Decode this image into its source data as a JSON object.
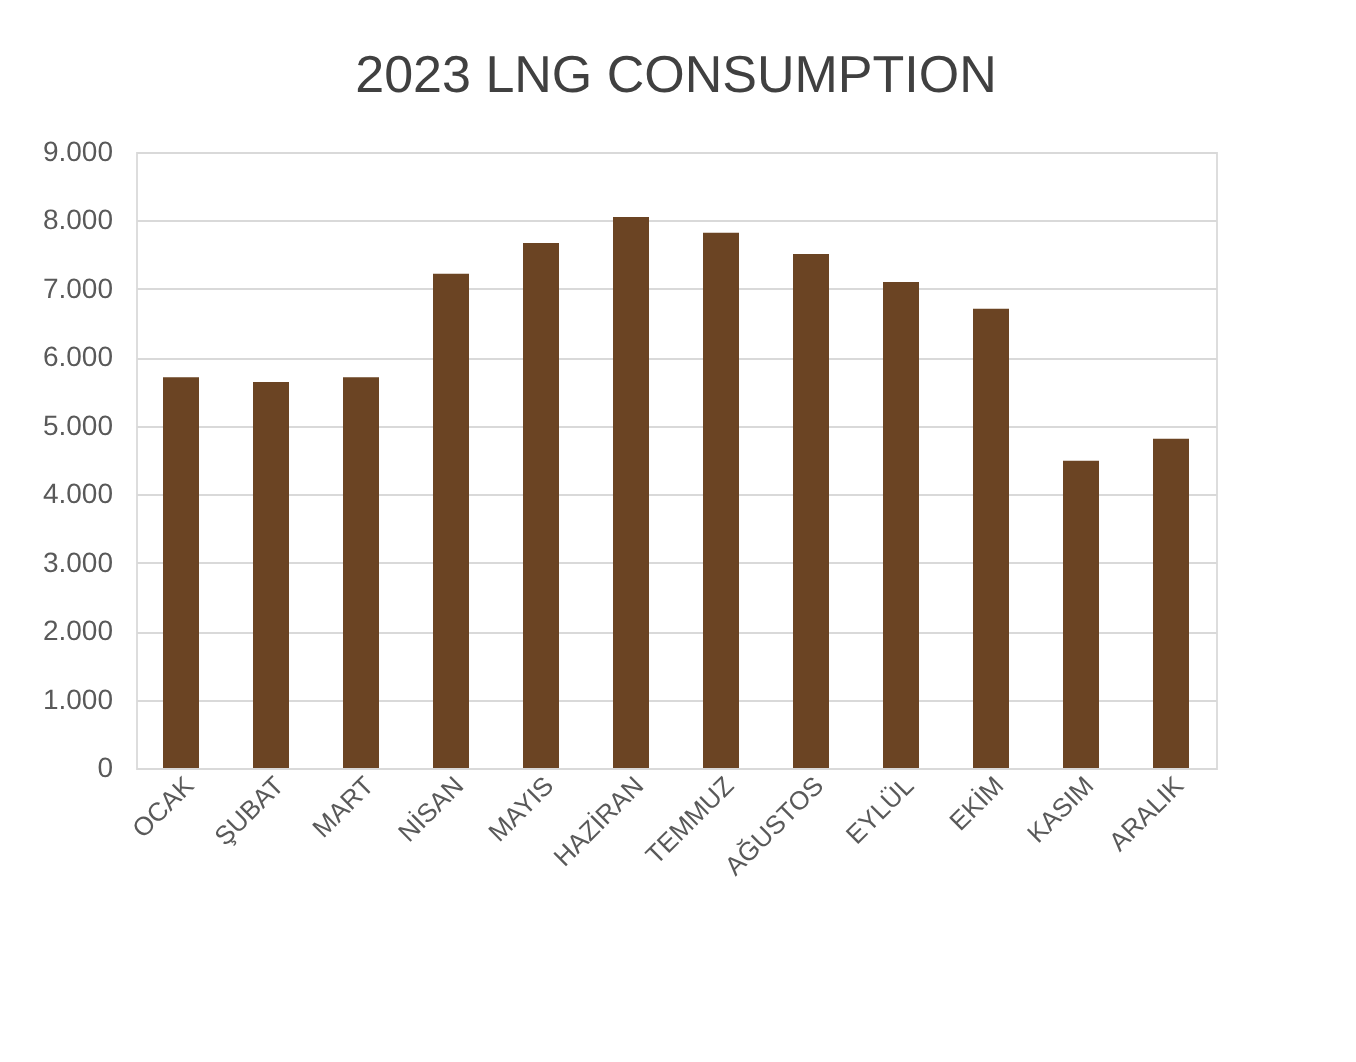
{
  "chart_data": {
    "type": "bar",
    "title": "2023 LNG CONSUMPTION",
    "categories": [
      "OCAK",
      "ŞUBAT",
      "MART",
      "NİSAN",
      "MAYIS",
      "HAZİRAN",
      "TEMMUZ",
      "AĞUSTOS",
      "EYLÜL",
      "EKİM",
      "KASIM",
      "ARALIK"
    ],
    "values": [
      5710,
      5640,
      5710,
      7220,
      7670,
      8050,
      7820,
      7510,
      7100,
      6710,
      4490,
      4810
    ],
    "color": "#6b4423",
    "ylim": [
      0,
      9000
    ],
    "yticks": [
      0,
      {
        "value": 1000,
        "label": "1.000"
      },
      {
        "value": 2000,
        "label": "2.000"
      },
      {
        "value": 3000,
        "label": "3.000"
      },
      {
        "value": 4000,
        "label": "4.000"
      },
      {
        "value": 5000,
        "label": "5.000"
      },
      {
        "value": 6000,
        "label": "6.000"
      },
      {
        "value": 7000,
        "label": "7.000"
      },
      {
        "value": 8000,
        "label": "8.000"
      },
      {
        "value": 9000,
        "label": "9.000"
      }
    ],
    "grid": "y"
  }
}
